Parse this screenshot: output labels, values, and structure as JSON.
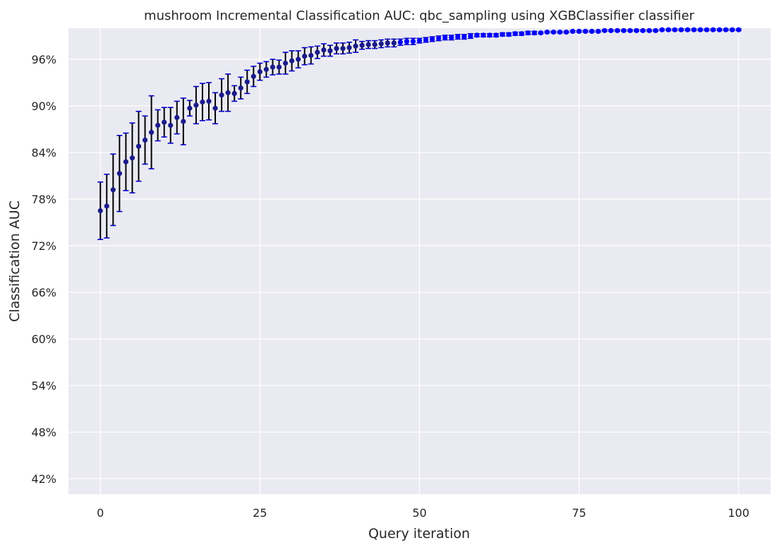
{
  "chart_data": {
    "type": "scatter",
    "title": "mushroom Incremental Classification AUC: qbc_sampling using XGBClassifier classifier",
    "xlabel": "Query iteration",
    "ylabel": "Classification AUC",
    "xlim": [
      -5,
      105
    ],
    "ylim": [
      40,
      100
    ],
    "x_ticks": [
      0,
      25,
      50,
      75,
      100
    ],
    "y_ticks": [
      42,
      48,
      54,
      60,
      66,
      72,
      78,
      84,
      90,
      96
    ],
    "y_tick_format": "percent",
    "grid": true,
    "marker_color_early": "#1a1a8c",
    "marker_color_late": "#0000ff",
    "errorbar_color": "#000000",
    "errorcap_color": "#0000cc",
    "background_color": "#eaeaf2",
    "grid_color": "#ffffff",
    "series": [
      {
        "name": "AUC",
        "x": [
          0,
          1,
          2,
          3,
          4,
          5,
          6,
          7,
          8,
          9,
          10,
          11,
          12,
          13,
          14,
          15,
          16,
          17,
          18,
          19,
          20,
          21,
          22,
          23,
          24,
          25,
          26,
          27,
          28,
          29,
          30,
          31,
          32,
          33,
          34,
          35,
          36,
          37,
          38,
          39,
          40,
          41,
          42,
          43,
          44,
          45,
          46,
          47,
          48,
          49,
          50,
          51,
          52,
          53,
          54,
          55,
          56,
          57,
          58,
          59,
          60,
          61,
          62,
          63,
          64,
          65,
          66,
          67,
          68,
          69,
          70,
          71,
          72,
          73,
          74,
          75,
          76,
          77,
          78,
          79,
          80,
          81,
          82,
          83,
          84,
          85,
          86,
          87,
          88,
          89,
          90,
          91,
          92,
          93,
          94,
          95,
          96,
          97,
          98,
          99,
          100
        ],
        "y": [
          76.5,
          77.1,
          79.2,
          81.3,
          82.8,
          83.3,
          84.8,
          85.6,
          86.6,
          87.5,
          87.9,
          87.5,
          88.5,
          88.0,
          89.7,
          90.1,
          90.5,
          90.6,
          89.7,
          91.4,
          91.7,
          91.6,
          92.3,
          93.1,
          93.8,
          94.4,
          94.7,
          95.0,
          95.0,
          95.5,
          95.8,
          96.0,
          96.4,
          96.5,
          96.9,
          97.2,
          97.1,
          97.4,
          97.4,
          97.5,
          97.7,
          97.8,
          97.9,
          97.9,
          98.0,
          98.1,
          98.1,
          98.2,
          98.3,
          98.3,
          98.4,
          98.5,
          98.6,
          98.7,
          98.8,
          98.8,
          98.9,
          98.9,
          99.0,
          99.1,
          99.1,
          99.1,
          99.1,
          99.2,
          99.2,
          99.3,
          99.3,
          99.4,
          99.4,
          99.4,
          99.5,
          99.5,
          99.5,
          99.5,
          99.6,
          99.6,
          99.6,
          99.6,
          99.6,
          99.7,
          99.7,
          99.7,
          99.7,
          99.7,
          99.7,
          99.7,
          99.7,
          99.7,
          99.8,
          99.8,
          99.8,
          99.8,
          99.8,
          99.8,
          99.8,
          99.8,
          99.8,
          99.8,
          99.8,
          99.8,
          99.8
        ],
        "y_err": [
          3.7,
          4.1,
          4.6,
          4.9,
          3.7,
          4.5,
          4.5,
          3.1,
          4.7,
          2.0,
          1.9,
          2.3,
          2.1,
          3.0,
          1.0,
          2.4,
          2.4,
          2.4,
          2.0,
          2.1,
          2.4,
          1.0,
          1.4,
          1.5,
          1.3,
          1.1,
          1.0,
          1.0,
          0.9,
          1.4,
          1.3,
          1.1,
          1.1,
          1.1,
          0.8,
          0.8,
          0.7,
          0.7,
          0.7,
          0.7,
          0.8,
          0.5,
          0.5,
          0.5,
          0.5,
          0.5,
          0.5,
          0.4,
          0.4,
          0.4,
          0.3,
          0.3,
          0.3,
          0.3,
          0.3,
          0.3,
          0.3,
          0.3,
          0.3,
          0.2,
          0.2,
          0.2,
          0.2,
          0.2,
          0.2,
          0.2,
          0.2,
          0.2,
          0.2,
          0.1,
          0.1,
          0.1,
          0.1,
          0.1,
          0.1,
          0.1,
          0.1,
          0.1,
          0.1,
          0.1,
          0.1,
          0.1,
          0.1,
          0.1,
          0.1,
          0.1,
          0.1,
          0.1,
          0.1,
          0.1,
          0.1,
          0.1,
          0.1,
          0.1,
          0.1,
          0.1,
          0.1,
          0.1,
          0.1,
          0.1,
          0.1
        ]
      }
    ]
  }
}
